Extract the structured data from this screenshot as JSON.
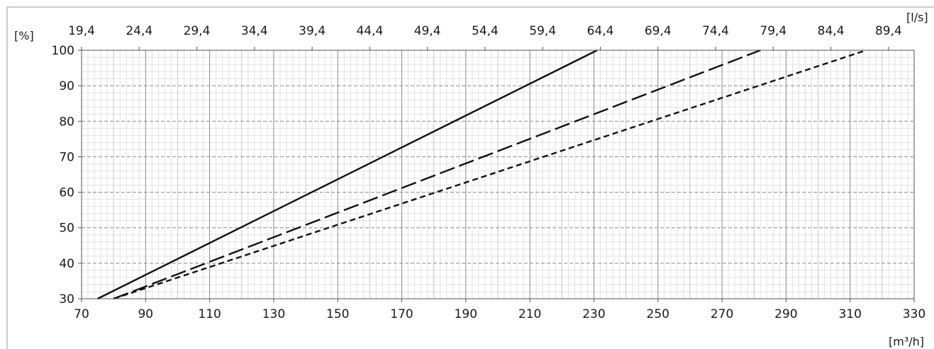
{
  "chart_data": {
    "type": "line",
    "title": "",
    "xlabel": "[m³/h]",
    "x2label": "[l/s]",
    "ylabel": "[%]",
    "xlim": [
      70,
      330
    ],
    "ylim": [
      30,
      100
    ],
    "x_ticks": [
      70,
      90,
      110,
      130,
      150,
      170,
      190,
      210,
      230,
      250,
      270,
      290,
      310,
      330
    ],
    "x2_ticks": [
      "19,4",
      "24,4",
      "29,4",
      "34,4",
      "39,4",
      "44,4",
      "49,4",
      "54,4",
      "59,4",
      "64,4",
      "69,4",
      "74,4",
      "79,4",
      "84,4",
      "89,4"
    ],
    "y_ticks": [
      30,
      40,
      50,
      60,
      70,
      80,
      90,
      100
    ],
    "grid": true,
    "series": [
      {
        "style": "solid",
        "x": [
          75,
          231
        ],
        "y": [
          30,
          100
        ]
      },
      {
        "style": "long-dash",
        "x": [
          80,
          282
        ],
        "y": [
          30,
          100
        ]
      },
      {
        "style": "short-dash",
        "x": [
          80,
          315
        ],
        "y": [
          30,
          100
        ]
      }
    ]
  }
}
